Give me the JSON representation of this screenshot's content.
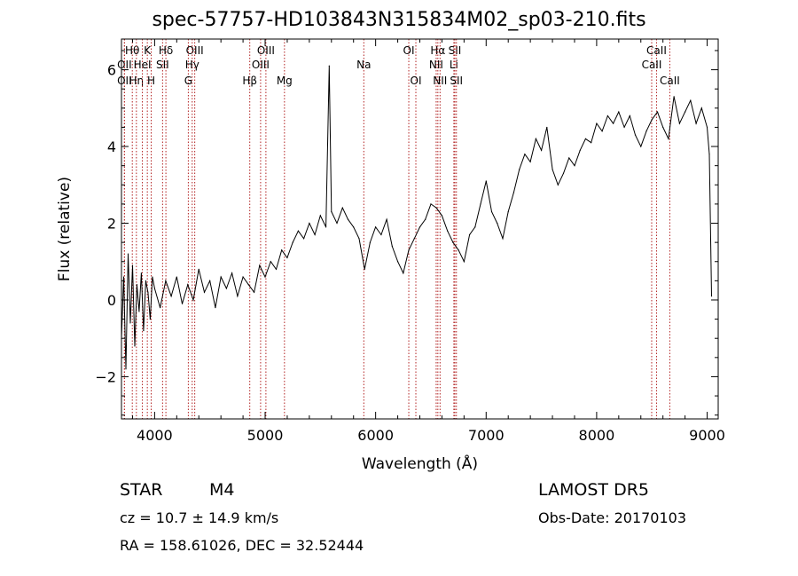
{
  "title": "spec-57757-HD103843N315834M02_sp03-210.fits",
  "footer": {
    "object_class": "STAR",
    "subclass": "M4",
    "cz": "cz = 10.7 ± 14.9 km/s",
    "coords": "RA = 158.61026, DEC =  32.52444",
    "survey": "LAMOST DR5",
    "obs_date": "Obs-Date: 20170103"
  },
  "chart_data": {
    "type": "line",
    "title": "spec-57757-HD103843N315834M02_sp03-210.fits",
    "xlabel": "Wavelength (Å)",
    "ylabel": "Flux (relative)",
    "xlim": [
      3700,
      9100
    ],
    "ylim": [
      -3.1,
      6.8
    ],
    "x_ticks": [
      4000,
      5000,
      6000,
      7000,
      8000,
      9000
    ],
    "y_ticks": [
      -2,
      0,
      2,
      4,
      6
    ],
    "line_color": "#000000",
    "marker_color": "#b22222",
    "series": [
      {
        "x": [
          3700,
          3720,
          3740,
          3760,
          3780,
          3800,
          3820,
          3840,
          3860,
          3880,
          3900,
          3920,
          3940,
          3960,
          3980,
          4000,
          4050,
          4100,
          4150,
          4200,
          4250,
          4300,
          4350,
          4400,
          4450,
          4500,
          4550,
          4600,
          4650,
          4700,
          4750,
          4800,
          4850,
          4900,
          4950,
          5000,
          5050,
          5100,
          5150,
          5200,
          5250,
          5300,
          5350,
          5400,
          5450,
          5500,
          5550,
          5580,
          5600,
          5650,
          5700,
          5750,
          5800,
          5850,
          5900,
          5950,
          6000,
          6050,
          6100,
          6150,
          6200,
          6250,
          6300,
          6350,
          6400,
          6450,
          6500,
          6550,
          6600,
          6650,
          6700,
          6750,
          6800,
          6850,
          6900,
          6950,
          7000,
          7050,
          7100,
          7150,
          7200,
          7250,
          7300,
          7350,
          7400,
          7450,
          7500,
          7550,
          7600,
          7650,
          7700,
          7750,
          7800,
          7850,
          7900,
          7950,
          8000,
          8050,
          8100,
          8150,
          8200,
          8250,
          8300,
          8350,
          8400,
          8450,
          8500,
          8550,
          8600,
          8650,
          8700,
          8750,
          8800,
          8850,
          8900,
          8950,
          9000,
          9020,
          9040
        ],
        "y": [
          -1.0,
          0.6,
          -1.8,
          1.2,
          -0.6,
          0.9,
          -1.2,
          0.4,
          -0.3,
          0.7,
          -0.8,
          0.5,
          0.2,
          -0.5,
          0.6,
          0.3,
          -0.2,
          0.5,
          0.1,
          0.6,
          -0.1,
          0.4,
          0.0,
          0.8,
          0.2,
          0.5,
          -0.2,
          0.6,
          0.3,
          0.7,
          0.1,
          0.6,
          0.4,
          0.2,
          0.9,
          0.6,
          1.0,
          0.8,
          1.3,
          1.1,
          1.5,
          1.8,
          1.6,
          2.0,
          1.7,
          2.2,
          1.9,
          6.1,
          2.3,
          2.0,
          2.4,
          2.1,
          1.9,
          1.6,
          0.8,
          1.5,
          1.9,
          1.7,
          2.1,
          1.4,
          1.0,
          0.7,
          1.3,
          1.6,
          1.9,
          2.1,
          2.5,
          2.4,
          2.2,
          1.8,
          1.5,
          1.3,
          1.0,
          1.7,
          1.9,
          2.5,
          3.1,
          2.3,
          2.0,
          1.6,
          2.3,
          2.8,
          3.4,
          3.8,
          3.6,
          4.2,
          3.9,
          4.5,
          3.4,
          3.0,
          3.3,
          3.7,
          3.5,
          3.9,
          4.2,
          4.1,
          4.6,
          4.4,
          4.8,
          4.6,
          4.9,
          4.5,
          4.8,
          4.3,
          4.0,
          4.4,
          4.7,
          4.9,
          4.5,
          4.2,
          5.3,
          4.6,
          4.9,
          5.2,
          4.6,
          5.0,
          4.5,
          3.8,
          0.1
        ]
      }
    ],
    "line_markers": [
      {
        "label": "Hθ",
        "x": 3798,
        "row": 0
      },
      {
        "label": "OII",
        "x": 3727,
        "row": 1
      },
      {
        "label": "OII",
        "x": 3727,
        "row": 2
      },
      {
        "label": "Hη",
        "x": 3835,
        "row": 2
      },
      {
        "label": "K",
        "x": 3934,
        "row": 0
      },
      {
        "label": "HeI",
        "x": 3889,
        "row": 1
      },
      {
        "label": "SII",
        "x": 4072,
        "row": 1
      },
      {
        "label": "H",
        "x": 3969,
        "row": 2
      },
      {
        "label": "Hδ",
        "x": 4102,
        "row": 0
      },
      {
        "label": "OIII",
        "x": 4363,
        "row": 0
      },
      {
        "label": "Hγ",
        "x": 4340,
        "row": 1
      },
      {
        "label": "G",
        "x": 4305,
        "row": 2
      },
      {
        "label": "Hβ",
        "x": 4861,
        "row": 2
      },
      {
        "label": "OIII",
        "x": 5007,
        "row": 0
      },
      {
        "label": "OIII",
        "x": 4959,
        "row": 1
      },
      {
        "label": "Mg",
        "x": 5175,
        "row": 2
      },
      {
        "label": "Na",
        "x": 5893,
        "row": 1
      },
      {
        "label": "OI",
        "x": 6300,
        "row": 0
      },
      {
        "label": "OI",
        "x": 6364,
        "row": 2
      },
      {
        "label": "Hα",
        "x": 6563,
        "row": 0
      },
      {
        "label": "SII",
        "x": 6717,
        "row": 0
      },
      {
        "label": "NII",
        "x": 6548,
        "row": 1
      },
      {
        "label": "Li",
        "x": 6708,
        "row": 1
      },
      {
        "label": "NII",
        "x": 6583,
        "row": 2
      },
      {
        "label": "SII",
        "x": 6731,
        "row": 2
      },
      {
        "label": "CaII",
        "x": 8542,
        "row": 0
      },
      {
        "label": "CaII",
        "x": 8498,
        "row": 1
      },
      {
        "label": "CaII",
        "x": 8662,
        "row": 2
      }
    ]
  }
}
